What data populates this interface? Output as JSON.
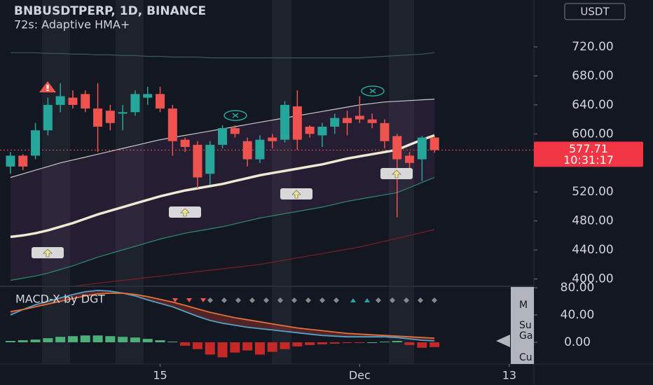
{
  "chart_data": [
    {
      "type": "candlestick",
      "title": "BNBUSDTPERP, 1D, BINANCE",
      "subtitle": "72s: Adaptive HMA+",
      "currency": "USDT",
      "x": [
        0,
        1,
        2,
        3,
        4,
        5,
        6,
        7,
        8,
        9,
        10,
        11,
        12,
        13,
        14,
        15,
        16,
        17,
        18,
        19,
        20,
        21,
        22,
        23,
        24,
        25,
        26,
        27,
        28,
        29,
        30,
        31,
        32,
        33,
        34
      ],
      "open": [
        555,
        570,
        570,
        605,
        640,
        650,
        655,
        635,
        632,
        628,
        630,
        650,
        655,
        635,
        592,
        585,
        545,
        585,
        608,
        590,
        565,
        595,
        592,
        638,
        610,
        598,
        610,
        622,
        625,
        620,
        615,
        597,
        570,
        565,
        595
      ],
      "high": [
        575,
        572,
        615,
        650,
        670,
        660,
        660,
        670,
        640,
        640,
        660,
        665,
        665,
        640,
        595,
        590,
        590,
        612,
        612,
        595,
        598,
        600,
        645,
        660,
        612,
        615,
        628,
        632,
        652,
        628,
        620,
        600,
        575,
        597,
        598
      ],
      "low": [
        545,
        550,
        565,
        598,
        630,
        635,
        630,
        575,
        605,
        605,
        625,
        640,
        630,
        570,
        575,
        525,
        530,
        580,
        595,
        555,
        560,
        580,
        588,
        578,
        595,
        582,
        600,
        598,
        615,
        608,
        580,
        485,
        550,
        535,
        574
      ],
      "close": [
        570,
        555,
        605,
        640,
        652,
        640,
        635,
        610,
        615,
        630,
        655,
        655,
        635,
        590,
        582,
        540,
        585,
        608,
        600,
        565,
        592,
        590,
        640,
        592,
        600,
        610,
        622,
        615,
        620,
        615,
        590,
        565,
        560,
        595,
        577.71
      ],
      "up_color": "#26a69a",
      "down_color": "#ef5350",
      "hma": {
        "color": "#ece9d4",
        "values": [
          458,
          460,
          463,
          467,
          472,
          477,
          483,
          489,
          494,
          499,
          504,
          509,
          514,
          518,
          522,
          525,
          528,
          531,
          535,
          539,
          543,
          546,
          549,
          552,
          555,
          558,
          562,
          566,
          569,
          572,
          575,
          578,
          585,
          592,
          598
        ]
      },
      "bands": [
        {
          "color": "#c9c9c9",
          "values": [
            540,
            545,
            550,
            555,
            560,
            564,
            568,
            572,
            576,
            580,
            584,
            588,
            592,
            595,
            598,
            601,
            604,
            607,
            610,
            613,
            616,
            619,
            622,
            625,
            628,
            631,
            634,
            637,
            640,
            642,
            644,
            645,
            646,
            647,
            648
          ]
        },
        {
          "color": "#2e8b6e",
          "values": [
            398,
            401,
            404,
            408,
            413,
            418,
            424,
            430,
            435,
            440,
            445,
            450,
            455,
            459,
            463,
            466,
            469,
            472,
            476,
            480,
            484,
            487,
            490,
            493,
            496,
            499,
            503,
            507,
            510,
            513,
            516,
            519,
            526,
            533,
            540
          ]
        },
        {
          "color": "#3a5a4e",
          "values": [
            712,
            712,
            712,
            711,
            711,
            710,
            710,
            709,
            709,
            708,
            708,
            707,
            707,
            706,
            706,
            706,
            705,
            705,
            705,
            705,
            705,
            705,
            705,
            705,
            705,
            705,
            705,
            705,
            705,
            706,
            707,
            708,
            709,
            710,
            712
          ]
        },
        {
          "color": "#7a1e2a",
          "values": [
            380,
            382,
            384,
            386,
            388,
            390,
            392,
            394,
            396,
            398,
            400,
            402,
            404,
            406,
            408,
            410,
            412,
            414,
            416,
            418,
            420,
            423,
            426,
            429,
            432,
            435,
            438,
            441,
            444,
            448,
            452,
            456,
            460,
            464,
            468
          ]
        }
      ],
      "last_price": 577.71,
      "countdown": "10:31:17",
      "ylim": [
        390.8,
        784.7
      ],
      "yticks": [
        {
          "value": 400,
          "label": "400.00"
        },
        {
          "value": 440,
          "label": "440.00"
        },
        {
          "value": 480,
          "label": "480.00"
        },
        {
          "value": 520,
          "label": "520.00"
        },
        {
          "value": 600,
          "label": "600.00"
        },
        {
          "value": 640,
          "label": "640.00"
        },
        {
          "value": 680,
          "label": "680.00"
        },
        {
          "value": 720,
          "label": "720.00"
        }
      ],
      "xlim": [
        -0.84,
        41.97
      ],
      "xticks": [
        {
          "value": 12,
          "label": "15"
        },
        {
          "value": 28,
          "label": "Dec"
        },
        {
          "value": 40,
          "label": "13"
        }
      ]
    },
    {
      "type": "macd",
      "title": "MACD-X by DGT",
      "histogram": {
        "up_color": "#4caf7a",
        "down_color": "#c62828",
        "values": [
          2,
          3,
          4,
          6,
          8,
          9,
          10,
          10,
          9,
          8,
          7,
          5,
          3,
          1,
          -5,
          -10,
          -18,
          -22,
          -15,
          -12,
          -18,
          -14,
          -10,
          -6,
          -4,
          -3,
          -2,
          -1,
          -1,
          0,
          1,
          2,
          -4,
          -8,
          -7
        ]
      },
      "series": [
        {
          "color": "#4fa3c7",
          "values": [
            40,
            48,
            55,
            60,
            65,
            70,
            74,
            76,
            75,
            72,
            68,
            62,
            57,
            52,
            45,
            38,
            32,
            28,
            25,
            22,
            20,
            18,
            16,
            14,
            12,
            10,
            9,
            8,
            8,
            8,
            8,
            7,
            5,
            3,
            2
          ]
        },
        {
          "color": "#e0703a",
          "values": [
            45,
            48,
            52,
            56,
            60,
            64,
            68,
            71,
            72,
            72,
            70,
            67,
            63,
            59,
            54,
            49,
            44,
            40,
            36,
            33,
            30,
            27,
            24,
            21,
            19,
            17,
            15,
            13,
            12,
            11,
            10,
            9,
            8,
            7,
            6
          ]
        }
      ],
      "ylim": [
        -31.8,
        81.0
      ],
      "yticks": [
        {
          "value": 0,
          "label": "0.00"
        },
        {
          "value": 40,
          "label": "40.00"
        },
        {
          "value": 80,
          "label": "80.00"
        }
      ],
      "side_labels": [
        "M",
        "Su",
        "Ga",
        "Cu"
      ]
    }
  ]
}
